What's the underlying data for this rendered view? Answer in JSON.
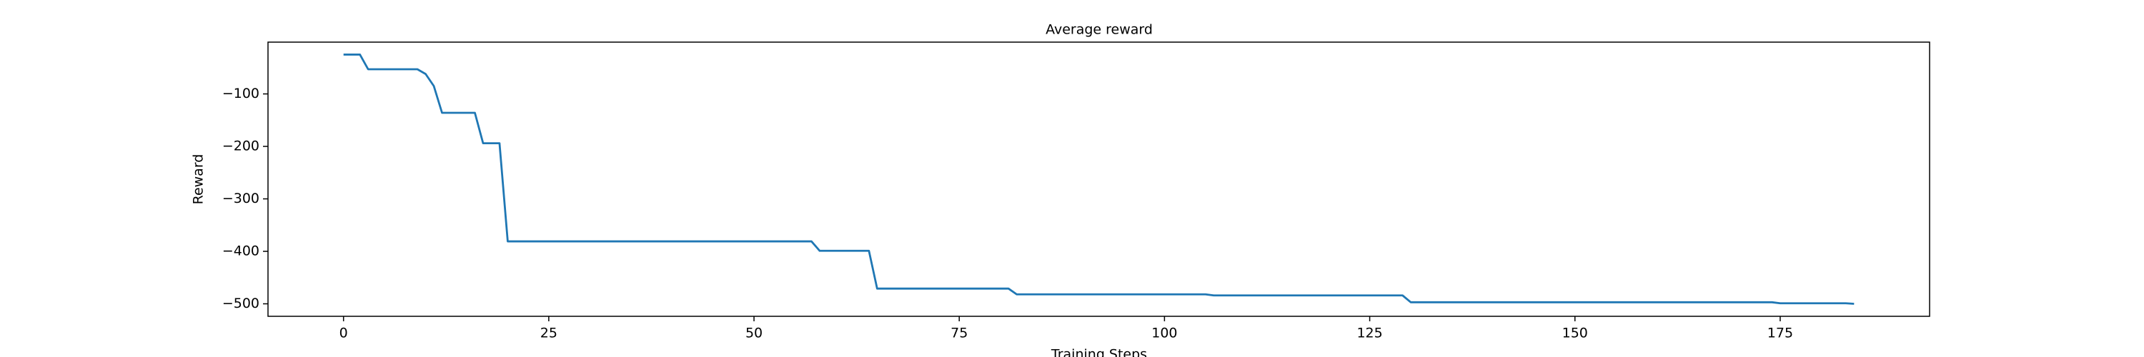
{
  "chart_data": {
    "type": "line",
    "title": "Average reward",
    "xlabel": "Training Steps",
    "ylabel": "Reward",
    "x": [
      0,
      1,
      2,
      3,
      4,
      5,
      6,
      7,
      8,
      9,
      10,
      11,
      12,
      13,
      14,
      15,
      16,
      17,
      18,
      19,
      20,
      21,
      22,
      23,
      24,
      25,
      26,
      27,
      28,
      29,
      30,
      31,
      32,
      33,
      34,
      35,
      36,
      37,
      38,
      39,
      40,
      41,
      42,
      43,
      44,
      45,
      46,
      47,
      48,
      49,
      50,
      51,
      52,
      53,
      54,
      55,
      56,
      57,
      58,
      59,
      60,
      61,
      62,
      63,
      64,
      65,
      66,
      67,
      68,
      69,
      70,
      71,
      72,
      73,
      74,
      75,
      76,
      77,
      78,
      79,
      80,
      81,
      82,
      83,
      84,
      85,
      86,
      87,
      88,
      89,
      90,
      91,
      92,
      93,
      94,
      95,
      96,
      97,
      98,
      99,
      100,
      101,
      102,
      103,
      104,
      105,
      106,
      107,
      108,
      109,
      110,
      111,
      112,
      113,
      114,
      115,
      116,
      117,
      118,
      119,
      120,
      121,
      122,
      123,
      124,
      125,
      126,
      127,
      128,
      129,
      130,
      131,
      132,
      133,
      134,
      135,
      136,
      137,
      138,
      139,
      140,
      141,
      142,
      143,
      144,
      145,
      146,
      147,
      148,
      149,
      150,
      151,
      152,
      153,
      154,
      155,
      156,
      157,
      158,
      159,
      160,
      161,
      162,
      163,
      164,
      165,
      166,
      167,
      168,
      169,
      170,
      171,
      172,
      173,
      174,
      175,
      176,
      177,
      178,
      179,
      180,
      181,
      182,
      183,
      184
    ],
    "series": [
      {
        "color": "#1f77b4",
        "values": [
          -25,
          -25,
          -25,
          -53,
          -53,
          -53,
          -53,
          -53,
          -53,
          -53,
          -62,
          -85,
          -136,
          -136,
          -136,
          -136,
          -136,
          -194,
          -194,
          -194,
          -381,
          -381,
          -381,
          -381,
          -381,
          -381,
          -381,
          -381,
          -381,
          -381,
          -381,
          -381,
          -381,
          -381,
          -381,
          -381,
          -381,
          -381,
          -381,
          -381,
          -381,
          -381,
          -381,
          -381,
          -381,
          -381,
          -381,
          -381,
          -381,
          -381,
          -381,
          -381,
          -381,
          -381,
          -381,
          -381,
          -381,
          -381,
          -399,
          -399,
          -399,
          -399,
          -399,
          -399,
          -399,
          -471,
          -471,
          -471,
          -471,
          -471,
          -471,
          -471,
          -471,
          -471,
          -471,
          -471,
          -471,
          -471,
          -471,
          -471,
          -471,
          -471,
          -482,
          -482,
          -482,
          -482,
          -482,
          -482,
          -482,
          -482,
          -482,
          -482,
          -482,
          -482,
          -482,
          -482,
          -482,
          -482,
          -482,
          -482,
          -482,
          -482,
          -482,
          -482,
          -482,
          -482,
          -484,
          -484,
          -484,
          -484,
          -484,
          -484,
          -484,
          -484,
          -484,
          -484,
          -484,
          -484,
          -484,
          -484,
          -484,
          -484,
          -484,
          -484,
          -484,
          -484,
          -484,
          -484,
          -484,
          -484,
          -497,
          -497,
          -497,
          -497,
          -497,
          -497,
          -497,
          -497,
          -497,
          -497,
          -497,
          -497,
          -497,
          -497,
          -497,
          -497,
          -497,
          -497,
          -497,
          -497,
          -497,
          -497,
          -497,
          -497,
          -497,
          -497,
          -497,
          -497,
          -497,
          -497,
          -497,
          -497,
          -497,
          -497,
          -497,
          -497,
          -497,
          -497,
          -497,
          -497,
          -497,
          -497,
          -497,
          -497,
          -497,
          -499,
          -499,
          -499,
          -499,
          -499,
          -499,
          -499,
          -499,
          -499,
          -500
        ]
      }
    ],
    "xlim": [
      -9.2,
      193.2
    ],
    "ylim": [
      -523.8,
      -1.3
    ],
    "xticks": [
      0,
      25,
      50,
      75,
      100,
      125,
      150,
      175
    ],
    "yticks": [
      {
        "value": -500,
        "label": "−500"
      },
      {
        "value": -400,
        "label": "−400"
      },
      {
        "value": -300,
        "label": "−300"
      },
      {
        "value": -200,
        "label": "−200"
      },
      {
        "value": -100,
        "label": "−100"
      }
    ]
  }
}
